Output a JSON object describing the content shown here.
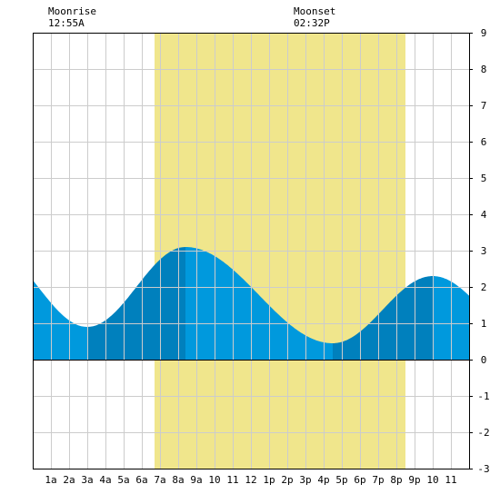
{
  "header": {
    "moonrise_label": "Moonrise",
    "moonrise_time": "12:55A",
    "moonset_label": "Moonset",
    "moonset_time": "02:32P"
  },
  "chart_data": {
    "type": "area",
    "title": "",
    "xlabel": "",
    "ylabel": "",
    "xlim": [
      0,
      24
    ],
    "ylim": [
      -3,
      9
    ],
    "grid": true,
    "x_tick_labels": [
      "1a",
      "2a",
      "3a",
      "4a",
      "5a",
      "6a",
      "7a",
      "8a",
      "9a",
      "10",
      "11",
      "12",
      "1p",
      "2p",
      "3p",
      "4p",
      "5p",
      "6p",
      "7p",
      "8p",
      "9p",
      "10",
      "11"
    ],
    "x_tick_hours": [
      1,
      2,
      3,
      4,
      5,
      6,
      7,
      8,
      9,
      10,
      11,
      12,
      13,
      14,
      15,
      16,
      17,
      18,
      19,
      20,
      21,
      22,
      23
    ],
    "y_ticks": [
      -3,
      -2,
      -1,
      0,
      1,
      2,
      3,
      4,
      5,
      6,
      7,
      8,
      9
    ],
    "daylight": {
      "start": 6.7,
      "end": 20.5
    },
    "tide_extrema": [
      {
        "type": "low",
        "time": 3.0,
        "height": 0.9
      },
      {
        "type": "high",
        "time": 8.4,
        "height": 3.1
      },
      {
        "type": "low",
        "time": 16.5,
        "height": 0.45
      },
      {
        "type": "high",
        "time": 22.0,
        "height": 2.3
      }
    ],
    "tide_start_height": 1.6,
    "tide_end_height": 2.0,
    "colors": {
      "daylight": "#f0e68c",
      "tide_light": "#0099dd",
      "tide_dark": "#0080bd",
      "grid": "#cccccc",
      "axis": "#000000"
    }
  }
}
